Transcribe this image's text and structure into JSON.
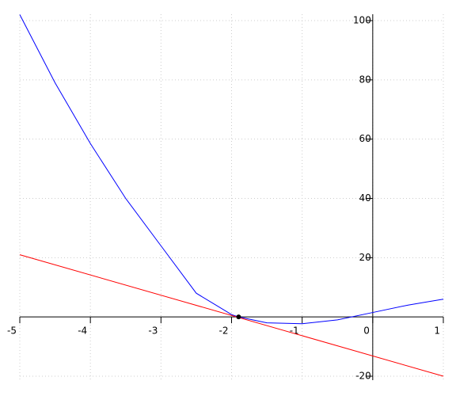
{
  "chart_data": {
    "type": "line",
    "xlim": [
      -5,
      1
    ],
    "ylim": [
      -20,
      100
    ],
    "xticks": [
      -5,
      -4,
      -3,
      -2,
      -1,
      0,
      1
    ],
    "yticks": [
      -20,
      20,
      40,
      60,
      80,
      100
    ],
    "grid": true,
    "series": [
      {
        "color": "#0000ff",
        "x": [
          -5,
          -4.5,
          -4,
          -3.5,
          -3,
          -2.5,
          -2,
          -1.9,
          -1.5,
          -1,
          -0.5,
          0,
          0.5,
          1
        ],
        "values": [
          102,
          79,
          58.5,
          40,
          24,
          8,
          0.8,
          0,
          -2,
          -2.3,
          -1,
          1.5,
          4,
          6
        ]
      },
      {
        "color": "#ff0000",
        "x": [
          -5,
          1
        ],
        "values": [
          21,
          -20
        ]
      }
    ],
    "point": {
      "x": -1.9,
      "y": 0,
      "color": "#000000"
    }
  }
}
